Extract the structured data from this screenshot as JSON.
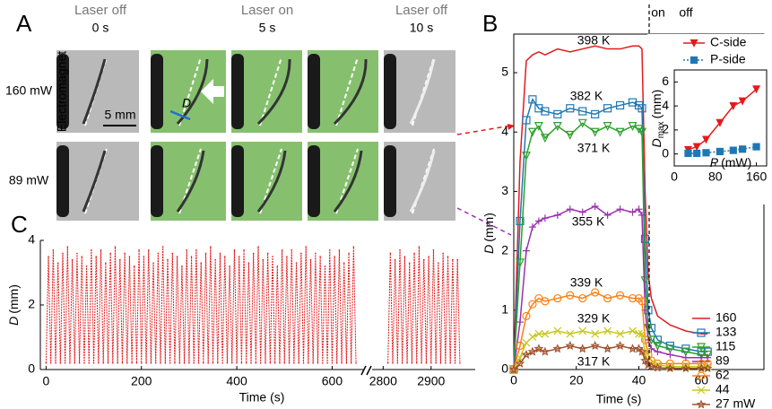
{
  "panel_labels": [
    "A",
    "B",
    "C"
  ],
  "panel_a": {
    "columns": [
      {
        "title": "Laser off",
        "time": "0 s"
      },
      {
        "title": "Laser on",
        "time": "5 s"
      },
      {
        "title": "Laser off",
        "time": "10 s"
      }
    ],
    "rows": [
      "160 mW",
      "89 mW"
    ],
    "scale_bar": "5 mm",
    "d_label": "D",
    "electromagnet": "Electromagnet"
  },
  "chart_data": [
    {
      "type": "line",
      "x_label": "Time (s)",
      "y_label": {
        "symbol": "D",
        "unit": "(mm)"
      },
      "xlim": [
        0,
        80
      ],
      "xticks": [
        0,
        20,
        40,
        60
      ],
      "ylim": [
        0,
        5.65
      ],
      "yticks": [
        0,
        1,
        2,
        3,
        4,
        5
      ],
      "x": [
        0,
        2,
        4,
        6,
        8,
        10,
        14,
        18,
        22,
        26,
        30,
        34,
        38,
        40,
        41,
        42,
        43,
        44,
        46,
        50,
        55,
        60,
        62
      ],
      "series": [
        {
          "name": "160",
          "color": "#e41a1c",
          "marker": "none",
          "values": [
            0,
            3.5,
            5.2,
            5.3,
            5.35,
            5.3,
            5.4,
            5.35,
            5.4,
            5.45,
            5.4,
            5.4,
            5.45,
            5.45,
            5.4,
            3.0,
            1.6,
            1.2,
            0.9,
            0.75,
            0.65,
            0.6,
            0.6
          ]
        },
        {
          "name": "133",
          "color": "#1f78b4",
          "marker": "square",
          "values": [
            0,
            2.5,
            4.2,
            4.55,
            4.4,
            4.35,
            4.3,
            4.4,
            4.35,
            4.3,
            4.4,
            4.45,
            4.5,
            4.45,
            4.4,
            2.2,
            1.0,
            0.7,
            0.5,
            0.4,
            0.35,
            0.3,
            0.3
          ]
        },
        {
          "name": "115",
          "color": "#2ca02c",
          "marker": "down-triangle",
          "values": [
            0,
            1.8,
            3.6,
            4.0,
            4.1,
            3.9,
            4.1,
            3.95,
            4.15,
            4.0,
            4.1,
            4.0,
            4.1,
            4.05,
            4.0,
            1.5,
            0.7,
            0.5,
            0.4,
            0.35,
            0.3,
            0.25,
            0.25
          ]
        },
        {
          "name": "89",
          "color": "#9b30b0",
          "marker": "plus",
          "values": [
            0,
            0.8,
            2.0,
            2.4,
            2.5,
            2.55,
            2.6,
            2.7,
            2.65,
            2.75,
            2.6,
            2.7,
            2.65,
            2.7,
            2.6,
            1.0,
            0.5,
            0.35,
            0.3,
            0.25,
            0.2,
            0.2,
            0.2
          ]
        },
        {
          "name": "62",
          "color": "#ff7f0e",
          "marker": "circle",
          "values": [
            0,
            0.4,
            0.9,
            1.1,
            1.2,
            1.15,
            1.2,
            1.25,
            1.2,
            1.3,
            1.2,
            1.25,
            1.2,
            1.2,
            1.15,
            0.5,
            0.25,
            0.15,
            0.1,
            0.1,
            0.1,
            0.1,
            0.1
          ]
        },
        {
          "name": "44",
          "color": "#c8c81e",
          "marker": "x",
          "values": [
            0,
            0.2,
            0.45,
            0.55,
            0.6,
            0.6,
            0.65,
            0.6,
            0.65,
            0.6,
            0.65,
            0.6,
            0.65,
            0.6,
            0.6,
            0.3,
            0.15,
            0.1,
            0.08,
            0.05,
            0.05,
            0.05,
            0.05
          ]
        },
        {
          "name": "27 mW",
          "color": "#a0522d",
          "marker": "star",
          "values": [
            0,
            0.1,
            0.25,
            0.3,
            0.35,
            0.3,
            0.35,
            0.4,
            0.35,
            0.4,
            0.35,
            0.4,
            0.35,
            0.35,
            0.3,
            0.15,
            0.08,
            0.05,
            0.03,
            0.02,
            0.02,
            0.02,
            0.02
          ]
        }
      ],
      "annotations": [
        "398 K",
        "382 K",
        "371 K",
        "355 K",
        "339 K",
        "329 K",
        "317 K",
        "on",
        "off"
      ]
    },
    {
      "type": "line",
      "x_label": {
        "symbol": "P",
        "unit": "(mW)"
      },
      "y_label": {
        "symbol": "D",
        "sub": "max",
        "unit": "(mm)"
      },
      "xlim": [
        0,
        180
      ],
      "xticks": [
        0,
        80,
        160
      ],
      "ylim": [
        -1,
        7
      ],
      "yticks": [
        0,
        2,
        4,
        6
      ],
      "x": [
        27,
        44,
        62,
        89,
        115,
        133,
        160
      ],
      "series": [
        {
          "name": "C-side",
          "color": "#e41a1c",
          "marker": "down-triangle",
          "linestyle": "solid",
          "values": [
            0.35,
            0.6,
            1.2,
            2.6,
            4.0,
            4.4,
            5.4
          ]
        },
        {
          "name": "P-side",
          "color": "#1f78b4",
          "marker": "square",
          "linestyle": "dotted",
          "values": [
            0.05,
            0.05,
            0.1,
            0.2,
            0.3,
            0.4,
            0.6
          ]
        }
      ]
    },
    {
      "type": "line",
      "x_label": "Time (s)",
      "y_label": {
        "symbol": "D",
        "unit": "(mm)"
      },
      "color": "#e41a1c",
      "ylim": [
        0,
        4
      ],
      "yticks": [
        0,
        2,
        4
      ],
      "segments": [
        {
          "xlim": [
            -12,
            665
          ],
          "xticks": [
            0,
            200,
            400,
            600
          ],
          "x": [
            0,
            5,
            10,
            15,
            20,
            25,
            30,
            35,
            40,
            45,
            50,
            55,
            60,
            65,
            70,
            75,
            80,
            85,
            90,
            95,
            100,
            105,
            110,
            115,
            120,
            125,
            130,
            135,
            140,
            145,
            150,
            155,
            160,
            165,
            170,
            175,
            180,
            185,
            190,
            195,
            200,
            205,
            210,
            215,
            220,
            225,
            230,
            235,
            240,
            245,
            250,
            255,
            260,
            265,
            270,
            275,
            280,
            285,
            290,
            295,
            300,
            305,
            310,
            315,
            320,
            325,
            330,
            335,
            340,
            345,
            350,
            355,
            360,
            365,
            370,
            375,
            380,
            385,
            390,
            395,
            400,
            405,
            410,
            415,
            420,
            425,
            430,
            435,
            440,
            445,
            450,
            455,
            460,
            465,
            470,
            475,
            480,
            485,
            490,
            495,
            500,
            505,
            510,
            515,
            520,
            525,
            530,
            535,
            540,
            545,
            550,
            555,
            560,
            565,
            570,
            575,
            580,
            585,
            590,
            595,
            600,
            605,
            610,
            615,
            620,
            625,
            630,
            635,
            640,
            645,
            650
          ],
          "values": [
            0.2,
            3.5,
            0.2,
            3.7,
            0.2,
            3.3,
            0.2,
            3.6,
            0.2,
            3.8,
            0.2,
            3.4,
            0.2,
            3.6,
            0.2,
            3.5,
            0.2,
            3.2,
            0.2,
            3.7,
            0.2,
            3.5,
            0.2,
            3.7,
            0.2,
            3.3,
            0.2,
            3.6,
            0.2,
            3.8,
            0.2,
            3.4,
            0.2,
            3.6,
            0.2,
            3.5,
            0.2,
            3.2,
            0.2,
            3.7,
            0.2,
            3.5,
            0.2,
            3.7,
            0.2,
            3.3,
            0.2,
            3.6,
            0.2,
            3.8,
            0.2,
            3.4,
            0.2,
            3.6,
            0.2,
            3.5,
            0.2,
            3.2,
            0.2,
            3.7,
            0.2,
            3.5,
            0.2,
            3.7,
            0.2,
            3.3,
            0.2,
            3.6,
            0.2,
            3.8,
            0.2,
            3.4,
            0.2,
            3.6,
            0.2,
            3.5,
            0.2,
            3.2,
            0.2,
            3.7,
            0.2,
            3.5,
            0.2,
            3.7,
            0.2,
            3.3,
            0.2,
            3.6,
            0.2,
            3.8,
            0.2,
            3.4,
            0.2,
            3.6,
            0.2,
            3.5,
            0.2,
            3.2,
            0.2,
            3.7,
            0.2,
            3.5,
            0.2,
            3.7,
            0.2,
            3.3,
            0.2,
            3.6,
            0.2,
            3.8,
            0.2,
            3.4,
            0.2,
            3.6,
            0.2,
            3.5,
            0.2,
            3.2,
            0.2,
            3.7,
            0.2,
            3.5,
            0.2,
            3.7,
            0.2,
            3.3,
            0.2,
            3.6,
            0.2,
            3.8,
            0.2
          ]
        },
        {
          "xlim": [
            2777,
            2992
          ],
          "xticks": [
            2800,
            2900
          ],
          "x": [
            2810,
            2815,
            2820,
            2825,
            2830,
            2835,
            2840,
            2845,
            2850,
            2855,
            2860,
            2865,
            2870,
            2875,
            2880,
            2885,
            2890,
            2895,
            2900,
            2905,
            2910,
            2915,
            2920,
            2925,
            2930,
            2935,
            2940,
            2945,
            2950,
            2955,
            2960
          ],
          "values": [
            0.2,
            3.6,
            0.2,
            3.4,
            0.2,
            3.7,
            0.2,
            3.5,
            0.2,
            3.3,
            0.2,
            3.6,
            0.2,
            3.8,
            0.2,
            3.4,
            0.2,
            3.5,
            0.2,
            3.7,
            0.2,
            3.3,
            0.2,
            3.6,
            0.2,
            3.5,
            0.2,
            3.4,
            0.2,
            3.4,
            0.2
          ]
        }
      ]
    }
  ]
}
